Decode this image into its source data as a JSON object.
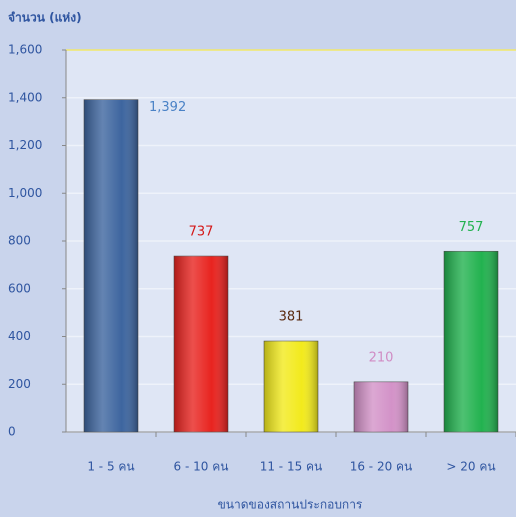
{
  "chart_data": {
    "type": "bar",
    "y_label": "จำนวน (แห่ง)",
    "x_label": "ขนาดของสถานประกอบการ",
    "categories": [
      "1 - 5 คน",
      "6 - 10 คน",
      "11 - 15 คน",
      "16 - 20 คน",
      "> 20 คน"
    ],
    "values": [
      1392,
      737,
      381,
      210,
      757
    ],
    "value_labels": [
      "1,392",
      "737",
      "381",
      "210",
      "757"
    ],
    "colors": [
      "#3d659f",
      "#e8231f",
      "#f2ea1c",
      "#d392c8",
      "#22b24f"
    ],
    "value_label_colors": [
      "#4a82c6",
      "#d41818",
      "#5a2a10",
      "#d08cc4",
      "#22b24f"
    ],
    "ylim": [
      0,
      1600
    ],
    "yticks": [
      0,
      200,
      400,
      600,
      800,
      {
        "value": 1000,
        "label": "1,000"
      },
      {
        "value": 1200,
        "label": "1,200"
      },
      {
        "value": 1400,
        "label": "1,400"
      },
      {
        "value": 1600,
        "label": "1,600"
      }
    ],
    "grid": true
  }
}
